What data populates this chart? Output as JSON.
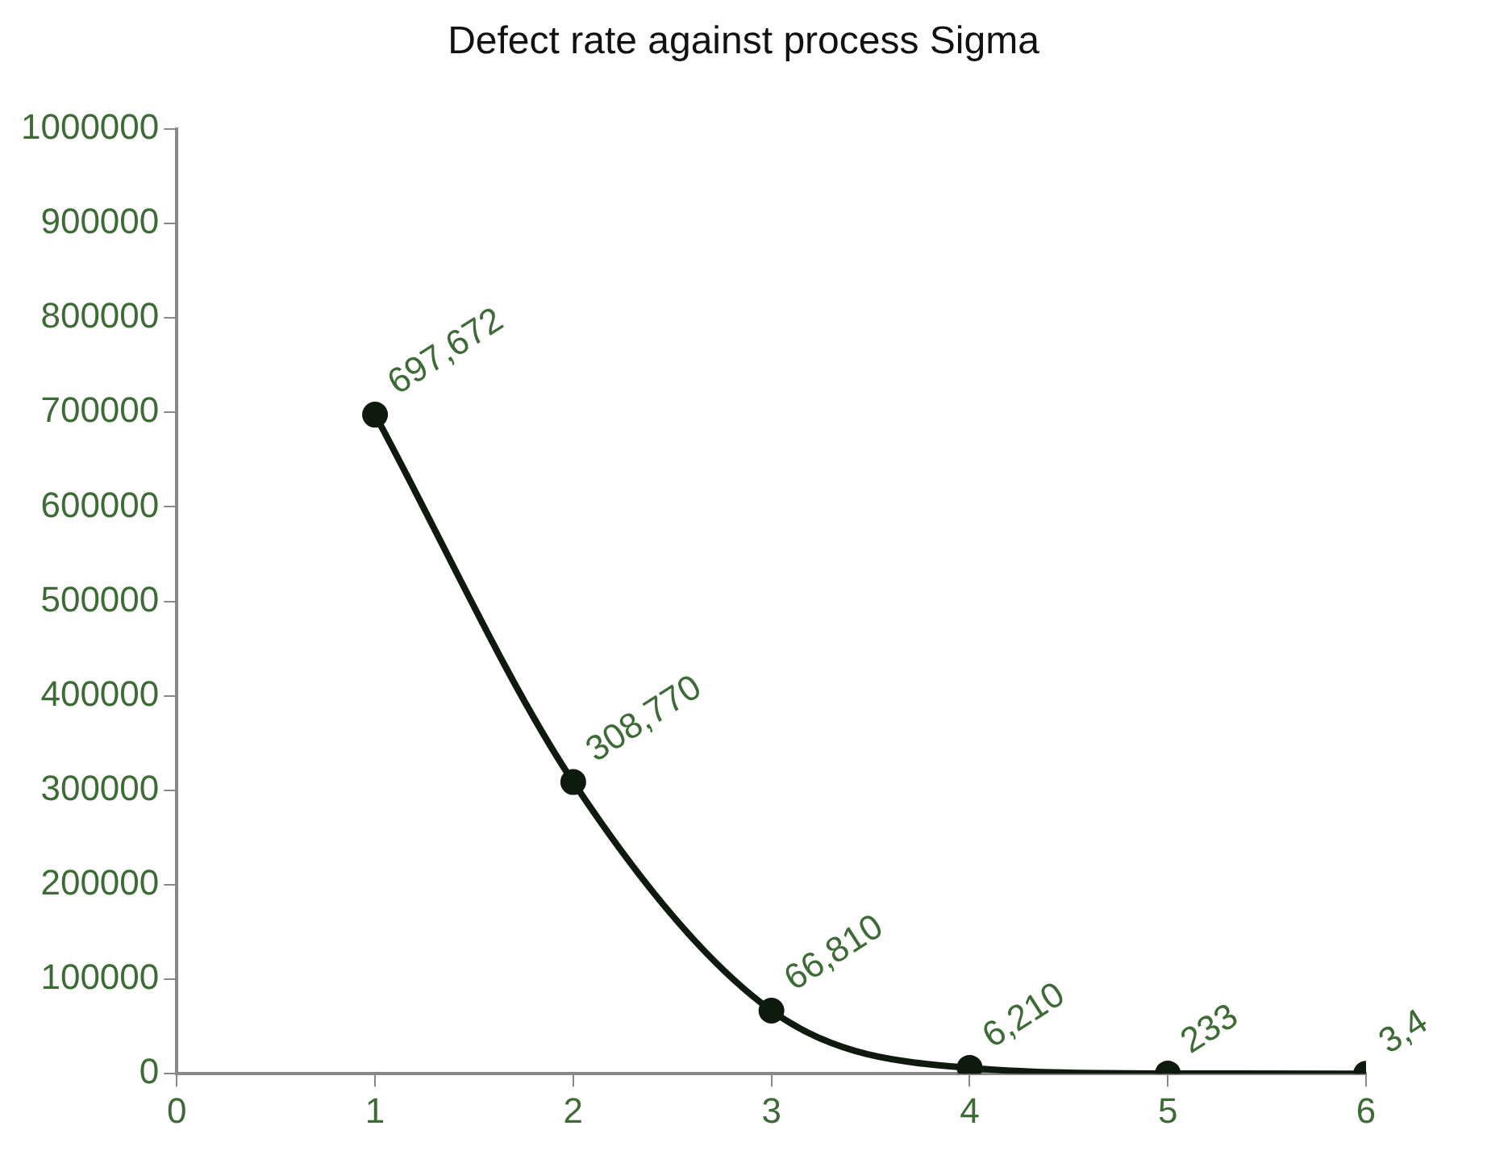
{
  "chart_data": {
    "type": "line",
    "title": "Defect rate against process Sigma",
    "x": [
      1,
      2,
      3,
      4,
      5,
      6
    ],
    "series": [
      {
        "color": "#0d1a0d",
        "values": [
          697672,
          308770,
          66810,
          6210,
          233,
          3.4
        ],
        "value_labels": [
          "697,672",
          "308,770",
          "66,810",
          "6,210",
          "233",
          "3,4"
        ]
      }
    ],
    "xlim": [
      0,
      6
    ],
    "xticks": [
      0,
      1,
      2,
      3,
      4,
      5,
      6
    ],
    "ylim": [
      0,
      1000000
    ],
    "yticks": [
      0,
      100000,
      200000,
      300000,
      400000,
      500000,
      600000,
      700000,
      800000,
      900000,
      1000000
    ],
    "grid": false,
    "legend": false,
    "marker": "circle",
    "line_style": "solid"
  }
}
